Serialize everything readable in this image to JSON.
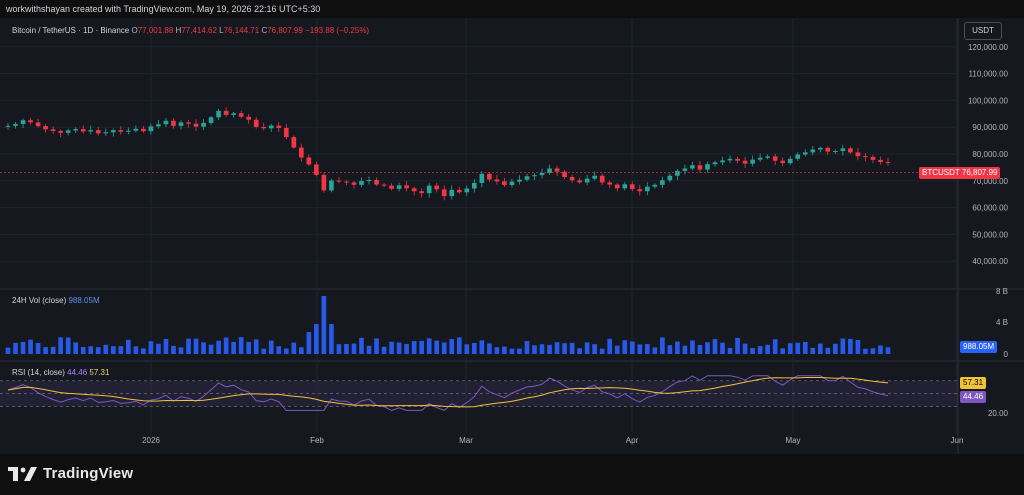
{
  "header": {
    "credit": "workwithshayan created with TradingView.com, May 19, 2026 22:16 UTC+5:30"
  },
  "legend": {
    "symbol": "Bitcoin / TetherUS · 1D · Binance",
    "o_label": "O",
    "o_value": "77,001.88",
    "h_label": "H",
    "h_value": "77,414.62",
    "l_label": "L",
    "l_value": "76,144.71",
    "c_label": "C",
    "c_value": "76,807.99",
    "change": "−193.88 (−0.25%)"
  },
  "currency_button": "USDT",
  "price_axis": [
    "120,000.00",
    "110,000.00",
    "100,000.00",
    "90,000.00",
    "80,000.00",
    "70,000.00",
    "60,000.00",
    "50,000.00",
    "40,000.00"
  ],
  "price_tag": {
    "symbol": "BTCUSDT",
    "value": "76,807.99"
  },
  "volume": {
    "legend_label": "24H Vol (close)",
    "legend_value": "988.05M",
    "axis": [
      "8 B",
      "4 B",
      "0"
    ],
    "tag": "988.05M"
  },
  "rsi": {
    "legend_label": "RSI (14, close)",
    "rsi_value": "44.46",
    "ma_value": "57.31",
    "axis_bottom": "20.00",
    "tag_ma": "57.31",
    "tag_rsi": "44.46"
  },
  "time_axis": [
    "2026",
    "Feb",
    "Mar",
    "Apr",
    "May",
    "Jun"
  ],
  "footer": {
    "brand": "TradingView"
  },
  "chart_data": {
    "type": "candlestick",
    "price_range": [
      30000,
      130000
    ],
    "grid": true,
    "colors": {
      "up": "#26a69a",
      "down": "#f23645",
      "volume": "#2962ff",
      "rsi": "#7e57c2",
      "rsi_ma": "#f0c43a"
    },
    "closes_approx": [
      90500,
      91200,
      92600,
      91800,
      90400,
      89200,
      88600,
      87900,
      88800,
      89300,
      88400,
      88900,
      87700,
      88100,
      88900,
      88300,
      88700,
      89400,
      88500,
      90300,
      91100,
      92400,
      90500,
      91800,
      91300,
      90200,
      91600,
      93700,
      96100,
      94600,
      95200,
      93900,
      92800,
      90100,
      89600,
      90600,
      89700,
      86300,
      82400,
      78700,
      76100,
      72200,
      66400,
      70100,
      69700,
      69400,
      68500,
      69900,
      70300,
      68600,
      68200,
      67000,
      68300,
      67200,
      66100,
      65400,
      68200,
      66800,
      64300,
      66600,
      65700,
      67100,
      69200,
      72600,
      70500,
      69800,
      68400,
      69700,
      70400,
      71700,
      72100,
      72900,
      74600,
      73400,
      71400,
      70200,
      69400,
      70800,
      71900,
      69400,
      68600,
      67200,
      68700,
      66900,
      66100,
      67800,
      68500,
      70200,
      71900,
      73700,
      74600,
      75800,
      74200,
      76200,
      76900,
      77600,
      78200,
      77500,
      76400,
      77900,
      78600,
      79100,
      77500,
      76600,
      78200,
      79800,
      80600,
      81700,
      82300,
      80900,
      81100,
      82100,
      80600,
      79200,
      78900,
      77800,
      77000,
      76800
    ],
    "rsi_range": [
      20,
      90
    ]
  }
}
